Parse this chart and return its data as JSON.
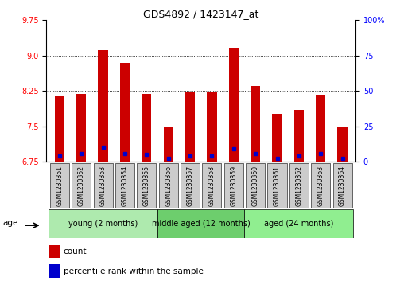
{
  "title": "GDS4892 / 1423147_at",
  "samples": [
    "GSM1230351",
    "GSM1230352",
    "GSM1230353",
    "GSM1230354",
    "GSM1230355",
    "GSM1230356",
    "GSM1230357",
    "GSM1230358",
    "GSM1230359",
    "GSM1230360",
    "GSM1230361",
    "GSM1230362",
    "GSM1230363",
    "GSM1230364"
  ],
  "bar_values": [
    8.15,
    8.18,
    9.12,
    8.85,
    8.18,
    7.5,
    8.22,
    8.22,
    9.17,
    8.35,
    7.77,
    7.85,
    8.17,
    7.5
  ],
  "blue_values": [
    6.88,
    6.92,
    7.05,
    6.93,
    6.9,
    6.82,
    6.88,
    6.88,
    7.02,
    6.93,
    6.82,
    6.88,
    6.93,
    6.82
  ],
  "ymin": 6.75,
  "ymax": 9.75,
  "yticks_left": [
    6.75,
    7.5,
    8.25,
    9.0,
    9.75
  ],
  "yticks_right_vals": [
    0,
    25,
    50,
    75,
    100
  ],
  "bar_color": "#cc0000",
  "dot_color": "#0000cc",
  "bar_width": 0.45,
  "group_starts": [
    0,
    5,
    9
  ],
  "group_ends": [
    5,
    9,
    14
  ],
  "group_labels": [
    "young (2 months)",
    "middle aged (12 months)",
    "aged (24 months)"
  ],
  "group_colors": [
    "#aeeaae",
    "#6dce6d",
    "#90ee90"
  ],
  "age_label": "age",
  "legend_labels": [
    "count",
    "percentile rank within the sample"
  ],
  "legend_colors": [
    "#cc0000",
    "#0000cc"
  ],
  "bg_color": "#ffffff",
  "label_box_color": "#cccccc",
  "title_fontsize": 9,
  "axis_fontsize": 7,
  "tick_fontsize": 7,
  "sample_fontsize": 5.5,
  "group_fontsize": 7,
  "legend_fontsize": 7.5
}
